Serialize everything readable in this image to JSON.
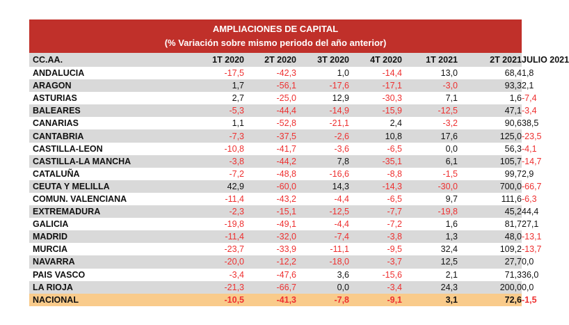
{
  "title": "AMPLIACIONES DE CAPITAL",
  "subtitle": "(%  Variación sobre mismo periodo del año anterior)",
  "colors": {
    "title_bg": "#c0302a",
    "header_bg": "#d9d9d9",
    "total_bg": "#f9cb8b",
    "negative": "#ee3030"
  },
  "columns": [
    "CC.AA.",
    "1T 2020",
    "2T 2020",
    "3T 2020",
    "4T 2020",
    "1T 2021",
    "2T 2021",
    "JULIO 2021"
  ],
  "rows": [
    {
      "name": "ANDALUCIA",
      "values": [
        "-17,5",
        "-42,3",
        "1,0",
        "-14,4",
        "13,0",
        "68,4",
        "1,8"
      ]
    },
    {
      "name": "ARAGON",
      "values": [
        "1,7",
        "-56,1",
        "-17,6",
        "-17,1",
        "-3,0",
        "93,3",
        "2,1"
      ]
    },
    {
      "name": "ASTURIAS",
      "values": [
        "2,7",
        "-25,0",
        "12,9",
        "-30,3",
        "7,1",
        "1,6",
        "-7,4"
      ]
    },
    {
      "name": "BALEARES",
      "values": [
        "-5,3",
        "-44,4",
        "-14,9",
        "-15,9",
        "-12,5",
        "47,1",
        "-3,4"
      ]
    },
    {
      "name": "CANARIAS",
      "values": [
        "1,1",
        "-52,8",
        "-21,1",
        "2,4",
        "-3,2",
        "90,6",
        "38,5"
      ]
    },
    {
      "name": "CANTABRIA",
      "values": [
        "-7,3",
        "-37,5",
        "-2,6",
        "10,8",
        "17,6",
        "125,0",
        "-23,5"
      ]
    },
    {
      "name": "CASTILLA-LEON",
      "values": [
        "-10,8",
        "-41,7",
        "-3,6",
        "-6,5",
        "0,0",
        "56,3",
        "-4,1"
      ]
    },
    {
      "name": "CASTILLA-LA MANCHA",
      "values": [
        "-3,8",
        "-44,2",
        "7,8",
        "-35,1",
        "6,1",
        "105,7",
        "-14,7"
      ]
    },
    {
      "name": "CATALUÑA",
      "values": [
        "-7,2",
        "-48,8",
        "-16,6",
        "-8,8",
        "-1,5",
        "99,7",
        "2,9"
      ]
    },
    {
      "name": "CEUTA Y MELILLA",
      "values": [
        "42,9",
        "-60,0",
        "14,3",
        "-14,3",
        "-30,0",
        "700,0",
        "-66,7"
      ]
    },
    {
      "name": "COMUN. VALENCIANA",
      "values": [
        "-11,4",
        "-43,2",
        "-4,4",
        "-6,5",
        "9,7",
        "111,6",
        "-6,3"
      ]
    },
    {
      "name": "EXTREMADURA",
      "values": [
        "-2,3",
        "-15,1",
        "-12,5",
        "-7,7",
        "-19,8",
        "45,2",
        "44,4"
      ]
    },
    {
      "name": "GALICIA",
      "values": [
        "-19,8",
        "-49,1",
        "-4,4",
        "-7,2",
        "1,6",
        "81,7",
        "27,1"
      ]
    },
    {
      "name": "MADRID",
      "values": [
        "-11,4",
        "-32,0",
        "-7,4",
        "-3,8",
        "1,3",
        "48,0",
        "-13,1"
      ]
    },
    {
      "name": "MURCIA",
      "values": [
        "-23,7",
        "-33,9",
        "-11,1",
        "-9,5",
        "32,4",
        "109,2",
        "-13,7"
      ]
    },
    {
      "name": "NAVARRA",
      "values": [
        "-20,0",
        "-12,2",
        "-18,0",
        "-3,7",
        "12,5",
        "27,7",
        "0,0"
      ]
    },
    {
      "name": "PAIS VASCO",
      "values": [
        "-3,4",
        "-47,6",
        "3,6",
        "-15,6",
        "2,1",
        "71,3",
        "36,0"
      ]
    },
    {
      "name": "LA RIOJA",
      "values": [
        "-21,3",
        "-66,7",
        "0,0",
        "-3,4",
        "24,3",
        "200,0",
        "0,0"
      ]
    }
  ],
  "total": {
    "name": "NACIONAL",
    "values": [
      "-10,5",
      "-41,3",
      "-7,8",
      "-9,1",
      "3,1",
      "72,6",
      "-1,5"
    ]
  }
}
